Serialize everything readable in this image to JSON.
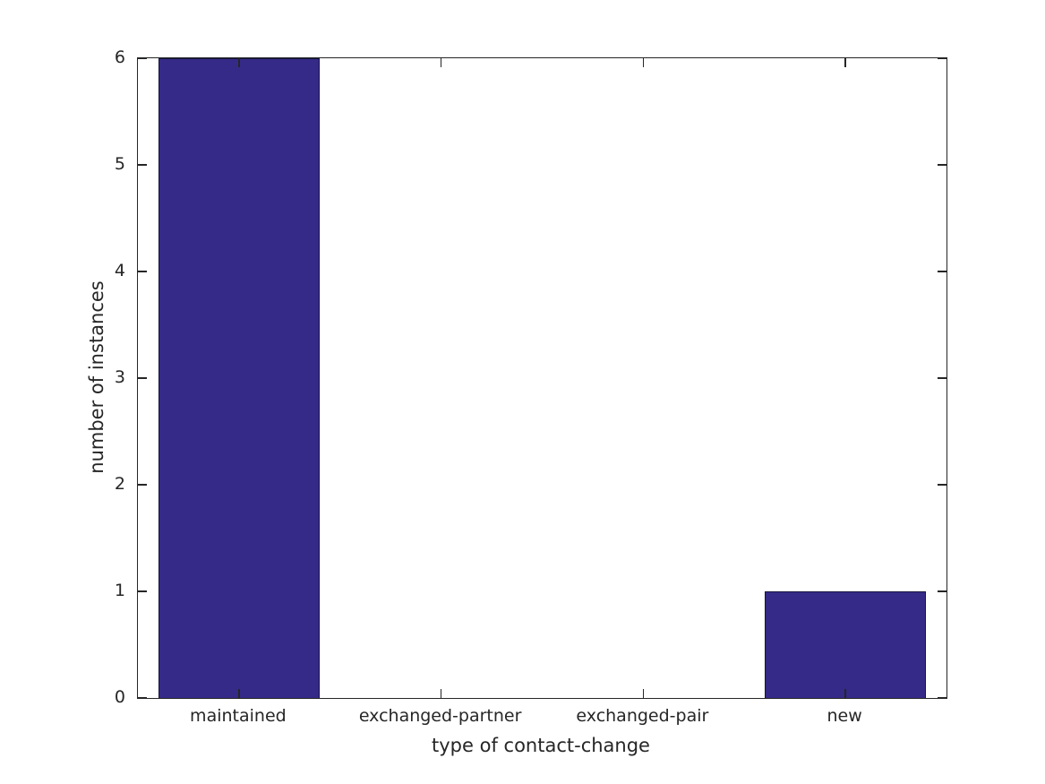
{
  "figure": {
    "background": "#ffffff"
  },
  "chart_data": {
    "type": "bar",
    "categories": [
      "maintained",
      "exchanged-partner",
      "exchanged-pair",
      "new"
    ],
    "values": [
      6,
      0,
      0,
      1
    ],
    "title": "",
    "xlabel": "type of contact-change",
    "ylabel": "number of instances",
    "ylim": [
      0,
      6
    ],
    "yticks": [
      0,
      1,
      2,
      3,
      4,
      5,
      6
    ],
    "ytick_labels": [
      "0",
      "1",
      "2",
      "3",
      "4",
      "5",
      "6"
    ],
    "bar_width_fraction": 0.8,
    "grid": false,
    "legend_position": "none",
    "colors": {
      "bar_fill": "#352A87",
      "bar_edge": "#14143c",
      "axis": "#262626",
      "text": "#262626",
      "background": "#ffffff"
    }
  }
}
